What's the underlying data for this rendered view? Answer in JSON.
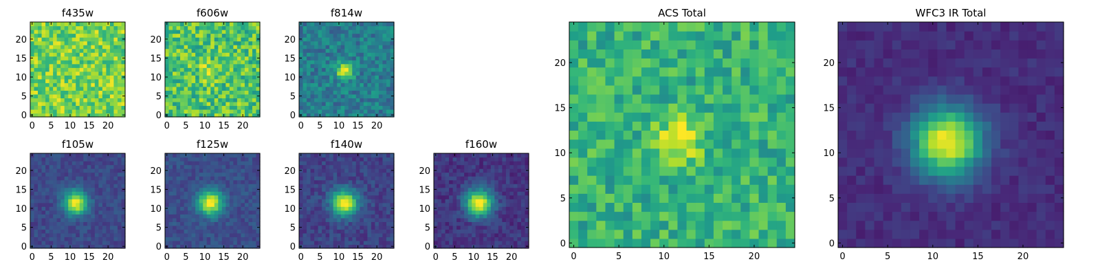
{
  "chart_data": [
    {
      "type": "heatmap",
      "title": "f435w",
      "xrange": [
        0,
        24
      ],
      "yrange": [
        0,
        24
      ],
      "xticks": [
        0,
        5,
        10,
        15,
        20
      ],
      "yticks": [
        0,
        5,
        10,
        15,
        20
      ],
      "cmap": "viridis",
      "grid": false,
      "pixels": 25,
      "base_level": 0.8,
      "noise": 0.18,
      "peak": 0.0,
      "sigma": 2.0,
      "center": [
        11.5,
        11.5
      ],
      "seed": 11
    },
    {
      "type": "heatmap",
      "title": "f606w",
      "xrange": [
        0,
        24
      ],
      "yrange": [
        0,
        24
      ],
      "xticks": [
        0,
        5,
        10,
        15,
        20
      ],
      "yticks": [
        0,
        5,
        10,
        15,
        20
      ],
      "cmap": "viridis",
      "grid": false,
      "pixels": 25,
      "base_level": 0.72,
      "noise": 0.2,
      "peak": 0.18,
      "sigma": 1.8,
      "center": [
        11.5,
        11.5
      ],
      "seed": 23
    },
    {
      "type": "heatmap",
      "title": "f814w",
      "xrange": [
        0,
        24
      ],
      "yrange": [
        0,
        24
      ],
      "xticks": [
        0,
        5,
        10,
        15,
        20
      ],
      "yticks": [
        0,
        5,
        10,
        15,
        20
      ],
      "cmap": "viridis",
      "grid": false,
      "pixels": 25,
      "base_level": 0.42,
      "noise": 0.14,
      "peak": 0.58,
      "sigma": 1.5,
      "center": [
        11.5,
        11.5
      ],
      "seed": 37
    },
    {
      "type": "heatmap",
      "title": "f105w",
      "xrange": [
        0,
        24
      ],
      "yrange": [
        0,
        24
      ],
      "xticks": [
        0,
        5,
        10,
        15,
        20
      ],
      "yticks": [
        0,
        5,
        10,
        15,
        20
      ],
      "cmap": "viridis",
      "grid": false,
      "pixels": 25,
      "base_level": 0.22,
      "noise": 0.07,
      "peak": 0.78,
      "sigma": 2.2,
      "center": [
        11.5,
        11.5
      ],
      "seed": 41
    },
    {
      "type": "heatmap",
      "title": "f125w",
      "xrange": [
        0,
        24
      ],
      "yrange": [
        0,
        24
      ],
      "xticks": [
        0,
        5,
        10,
        15,
        20
      ],
      "yticks": [
        0,
        5,
        10,
        15,
        20
      ],
      "cmap": "viridis",
      "grid": false,
      "pixels": 25,
      "base_level": 0.24,
      "noise": 0.07,
      "peak": 0.76,
      "sigma": 2.3,
      "center": [
        11.5,
        11.5
      ],
      "seed": 53
    },
    {
      "type": "heatmap",
      "title": "f140w",
      "xrange": [
        0,
        24
      ],
      "yrange": [
        0,
        24
      ],
      "xticks": [
        0,
        5,
        10,
        15,
        20
      ],
      "yticks": [
        0,
        5,
        10,
        15,
        20
      ],
      "cmap": "viridis",
      "grid": false,
      "pixels": 25,
      "base_level": 0.2,
      "noise": 0.08,
      "peak": 0.8,
      "sigma": 2.4,
      "center": [
        11.5,
        11.5
      ],
      "seed": 67
    },
    {
      "type": "heatmap",
      "title": "f160w",
      "xrange": [
        0,
        24
      ],
      "yrange": [
        0,
        24
      ],
      "xticks": [
        0,
        5,
        10,
        15,
        20
      ],
      "yticks": [
        0,
        5,
        10,
        15,
        20
      ],
      "cmap": "viridis",
      "grid": false,
      "pixels": 25,
      "base_level": 0.16,
      "noise": 0.08,
      "peak": 0.84,
      "sigma": 2.5,
      "center": [
        11.5,
        11.5
      ],
      "seed": 71
    },
    {
      "type": "heatmap",
      "title": "ACS Total",
      "xrange": [
        0,
        24
      ],
      "yrange": [
        0,
        24
      ],
      "xticks": [
        0,
        5,
        10,
        15,
        20
      ],
      "yticks": [
        0,
        5,
        10,
        15,
        20
      ],
      "cmap": "viridis",
      "grid": false,
      "pixels": 25,
      "base_level": 0.64,
      "noise": 0.16,
      "peak": 0.38,
      "sigma": 1.7,
      "center": [
        11.8,
        11.5
      ],
      "seed": 83
    },
    {
      "type": "heatmap",
      "title": "WFC3 IR Total",
      "xrange": [
        0,
        24
      ],
      "yrange": [
        0,
        24
      ],
      "xticks": [
        0,
        5,
        10,
        15,
        20
      ],
      "yticks": [
        0,
        5,
        10,
        15,
        20
      ],
      "cmap": "viridis",
      "grid": false,
      "pixels": 25,
      "base_level": 0.13,
      "noise": 0.05,
      "peak": 0.87,
      "sigma": 2.7,
      "center": [
        11.6,
        11.2
      ],
      "seed": 97
    }
  ]
}
